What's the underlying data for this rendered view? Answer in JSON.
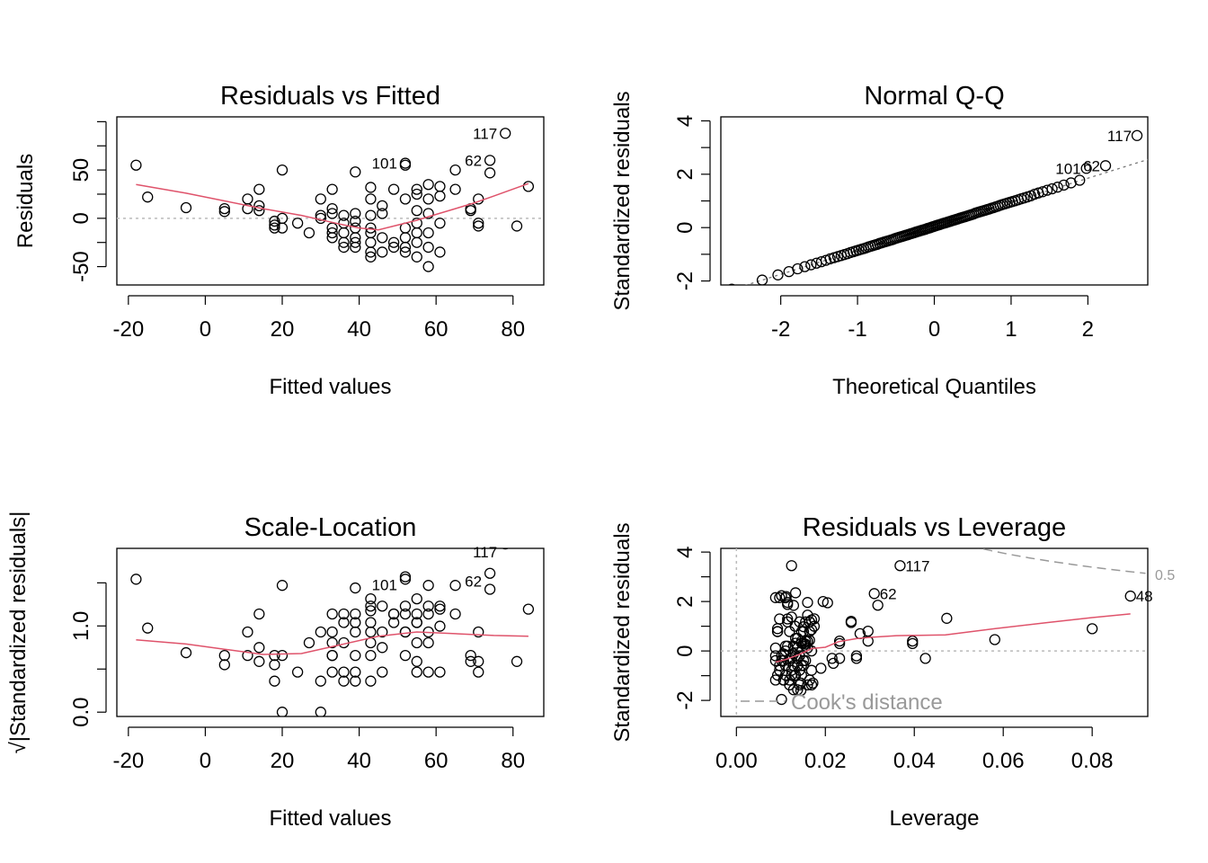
{
  "chart_data": [
    {
      "type": "scatter",
      "title": "Residuals vs Fitted",
      "xlabel": "Fitted values",
      "ylabel": "Residuals",
      "xlim": [
        -23,
        88
      ],
      "ylim": [
        -69,
        105
      ],
      "xticks": [
        -20,
        0,
        20,
        40,
        60,
        80
      ],
      "xtick_labels": [
        "-20",
        "0",
        "20",
        "40",
        "60",
        "80"
      ],
      "yticks": [
        -50,
        0,
        50
      ],
      "ytick_labels": [
        "-50",
        "0",
        "50"
      ],
      "yminor": [
        -25,
        25,
        75,
        100
      ],
      "points": [
        [
          -18,
          55
        ],
        [
          -15,
          22
        ],
        [
          -5,
          11
        ],
        [
          5,
          10
        ],
        [
          5,
          7
        ],
        [
          11,
          20
        ],
        [
          11,
          10
        ],
        [
          14,
          30
        ],
        [
          14,
          13
        ],
        [
          14,
          8
        ],
        [
          18,
          -3
        ],
        [
          18,
          -7
        ],
        [
          18,
          -10
        ],
        [
          20,
          50
        ],
        [
          20,
          0
        ],
        [
          20,
          -10
        ],
        [
          24,
          -5
        ],
        [
          27,
          -15
        ],
        [
          30,
          20
        ],
        [
          30,
          3
        ],
        [
          30,
          0
        ],
        [
          33,
          30
        ],
        [
          33,
          10
        ],
        [
          33,
          5
        ],
        [
          33,
          -10
        ],
        [
          33,
          -15
        ],
        [
          33,
          -20
        ],
        [
          36,
          3
        ],
        [
          36,
          -5
        ],
        [
          36,
          -15
        ],
        [
          36,
          -25
        ],
        [
          36,
          -30
        ],
        [
          39,
          48
        ],
        [
          39,
          5
        ],
        [
          39,
          -3
        ],
        [
          39,
          -10
        ],
        [
          39,
          -20
        ],
        [
          39,
          -25
        ],
        [
          39,
          -30
        ],
        [
          43,
          32
        ],
        [
          43,
          20
        ],
        [
          43,
          3
        ],
        [
          43,
          -10
        ],
        [
          43,
          -15
        ],
        [
          43,
          -25
        ],
        [
          43,
          -35
        ],
        [
          43,
          -40
        ],
        [
          46,
          13
        ],
        [
          46,
          5
        ],
        [
          46,
          -20
        ],
        [
          46,
          -35
        ],
        [
          49,
          30
        ],
        [
          49,
          -25
        ],
        [
          49,
          -30
        ],
        [
          52,
          57
        ],
        [
          52,
          55
        ],
        [
          52,
          20
        ],
        [
          52,
          -10
        ],
        [
          52,
          -20
        ],
        [
          52,
          -30
        ],
        [
          52,
          -35
        ],
        [
          55,
          30
        ],
        [
          55,
          25
        ],
        [
          55,
          8
        ],
        [
          55,
          -5
        ],
        [
          55,
          -15
        ],
        [
          55,
          -25
        ],
        [
          55,
          -40
        ],
        [
          58,
          35
        ],
        [
          58,
          20
        ],
        [
          58,
          5
        ],
        [
          58,
          -15
        ],
        [
          58,
          -30
        ],
        [
          58,
          -50
        ],
        [
          61,
          33
        ],
        [
          61,
          23
        ],
        [
          61,
          -5
        ],
        [
          61,
          -35
        ],
        [
          65,
          30
        ],
        [
          65,
          50
        ],
        [
          69,
          10
        ],
        [
          69,
          8
        ],
        [
          71,
          20
        ],
        [
          71,
          -5
        ],
        [
          71,
          -8
        ],
        [
          74,
          60
        ],
        [
          74,
          47
        ],
        [
          78,
          88
        ],
        [
          81,
          -8
        ],
        [
          84,
          33
        ]
      ],
      "smoother": [
        [
          -18,
          35
        ],
        [
          -5,
          26
        ],
        [
          5,
          18
        ],
        [
          15,
          10
        ],
        [
          25,
          3
        ],
        [
          35,
          -6
        ],
        [
          40,
          -10
        ],
        [
          45,
          -12
        ],
        [
          50,
          -7
        ],
        [
          55,
          -2
        ],
        [
          60,
          4
        ],
        [
          65,
          10
        ],
        [
          70,
          16
        ],
        [
          75,
          23
        ],
        [
          84,
          36
        ]
      ],
      "reference_line": 0,
      "labels": [
        {
          "text": "117",
          "x": 78,
          "y": 88
        },
        {
          "text": "62",
          "x": 74,
          "y": 60
        },
        {
          "text": "101",
          "x": 52,
          "y": 57
        }
      ],
      "colors": {
        "points": "#000000",
        "smoother": "#DF536B",
        "reference": "#BBBBBB"
      }
    },
    {
      "type": "scatter",
      "title": "Normal Q-Q",
      "xlabel": "Theoretical Quantiles",
      "ylabel": "Standardized residuals",
      "xlim": [
        -2.78,
        2.78
      ],
      "ylim": [
        -2.15,
        4.15
      ],
      "xticks": [
        -2,
        -1,
        0,
        1,
        2
      ],
      "xtick_labels": [
        "-2",
        "-1",
        "0",
        "1",
        "2"
      ],
      "yticks": [
        -2,
        0,
        2,
        4
      ],
      "ytick_labels": [
        "-2",
        "0",
        "2",
        "4"
      ],
      "yminor": [
        -1,
        1,
        3
      ],
      "points_n": 120,
      "reference_line": {
        "slope": 0.9,
        "intercept": 0.05
      },
      "labels": [
        {
          "text": "117",
          "x": 2.64,
          "y": 3.45
        },
        {
          "text": "62",
          "x": 2.23,
          "y": 2.32
        },
        {
          "text": "101",
          "x": 1.98,
          "y": 2.22
        }
      ],
      "colors": {
        "points": "#000000",
        "reference": "#777777"
      }
    },
    {
      "type": "scatter",
      "title": "Scale-Location",
      "xlabel": "Fitted values",
      "ylabel": "√|Standardized residuals|",
      "xlim": [
        -23,
        88
      ],
      "ylim": [
        -0.05,
        1.9
      ],
      "xticks": [
        -20,
        0,
        20,
        40,
        60,
        80
      ],
      "xtick_labels": [
        "-20",
        "0",
        "20",
        "40",
        "60",
        "80"
      ],
      "yticks": [
        0.0,
        1.0
      ],
      "ytick_labels": [
        "0.0",
        "1.0"
      ],
      "yminor": [
        0.5,
        1.5
      ],
      "smoother": [
        [
          -18,
          0.84
        ],
        [
          -5,
          0.79
        ],
        [
          5,
          0.73
        ],
        [
          15,
          0.67
        ],
        [
          25,
          0.68
        ],
        [
          35,
          0.78
        ],
        [
          45,
          0.88
        ],
        [
          55,
          0.93
        ],
        [
          65,
          0.91
        ],
        [
          75,
          0.89
        ],
        [
          84,
          0.88
        ]
      ],
      "labels": [
        {
          "text": "117",
          "x": 78,
          "y": 1.86
        },
        {
          "text": "62",
          "x": 74,
          "y": 1.52
        },
        {
          "text": "101",
          "x": 52,
          "y": 1.48
        }
      ],
      "colors": {
        "points": "#000000",
        "smoother": "#DF536B"
      }
    },
    {
      "type": "scatter",
      "title": "Residuals vs Leverage",
      "xlabel": "Leverage",
      "ylabel": "Standardized residuals",
      "xlim": [
        -0.0035,
        0.0925
      ],
      "ylim": [
        -2.65,
        4.15
      ],
      "xticks": [
        0.0,
        0.02,
        0.04,
        0.06,
        0.08
      ],
      "xtick_labels": [
        "0.00",
        "0.02",
        "0.04",
        "0.06",
        "0.08"
      ],
      "yticks": [
        -2,
        0,
        2,
        4
      ],
      "ytick_labels": [
        "-2",
        "0",
        "2",
        "4"
      ],
      "yminor": [
        -1,
        1,
        3
      ],
      "points_extra": [
        [
          0.0368,
          3.45
        ],
        [
          0.031,
          2.32
        ],
        [
          0.0886,
          2.22
        ],
        [
          0.0473,
          1.32
        ],
        [
          0.0581,
          0.46
        ],
        [
          0.08,
          0.9
        ],
        [
          0.0396,
          0.4
        ],
        [
          0.0396,
          0.3
        ],
        [
          0.0425,
          -0.3
        ],
        [
          0.0318,
          1.85
        ],
        [
          0.0296,
          0.8
        ],
        [
          0.0296,
          0.4
        ],
        [
          0.0278,
          0.7
        ],
        [
          0.027,
          -0.3
        ],
        [
          0.027,
          -0.2
        ],
        [
          0.0258,
          1.2
        ],
        [
          0.0258,
          1.15
        ],
        [
          0.0232,
          0.4
        ],
        [
          0.0232,
          0.3
        ],
        [
          0.0232,
          -0.3
        ],
        [
          0.0195,
          2.0
        ],
        [
          0.0205,
          1.95
        ],
        [
          0.0112,
          2.2
        ],
        [
          0.011,
          2.15
        ],
        [
          0.0175,
          1.0
        ],
        [
          0.0175,
          1.3
        ],
        [
          0.016,
          1.45
        ],
        [
          0.0215,
          -0.3
        ],
        [
          0.0218,
          -0.5
        ],
        [
          0.019,
          -0.7
        ],
        [
          0.0172,
          -1.3
        ],
        [
          0.0145,
          -1.6
        ],
        [
          0.0145,
          -1.3
        ],
        [
          0.013,
          -1.0
        ],
        [
          0.0132,
          1.0
        ]
      ],
      "smoother": [
        [
          0.0088,
          -0.45
        ],
        [
          0.011,
          -0.35
        ],
        [
          0.014,
          -0.15
        ],
        [
          0.017,
          0.1
        ],
        [
          0.02,
          0.15
        ],
        [
          0.023,
          0.38
        ],
        [
          0.027,
          0.5
        ],
        [
          0.03,
          0.55
        ],
        [
          0.036,
          0.62
        ],
        [
          0.047,
          0.65
        ],
        [
          0.058,
          0.9
        ],
        [
          0.07,
          1.15
        ],
        [
          0.08,
          1.35
        ],
        [
          0.0886,
          1.5
        ]
      ],
      "reference_line": 0,
      "vertical_reference": 0,
      "cooks_distance_label": "Cook's distance",
      "cooks_level_label": "0.5",
      "labels": [
        {
          "text": "117",
          "x": 0.0368,
          "y": 3.45
        },
        {
          "text": "62",
          "x": 0.031,
          "y": 2.32
        },
        {
          "text": "48",
          "x": 0.0886,
          "y": 2.22
        }
      ],
      "colors": {
        "points": "#000000",
        "smoother": "#DF536B",
        "reference": "#BBBBBB",
        "cooks": "#999999"
      }
    }
  ]
}
